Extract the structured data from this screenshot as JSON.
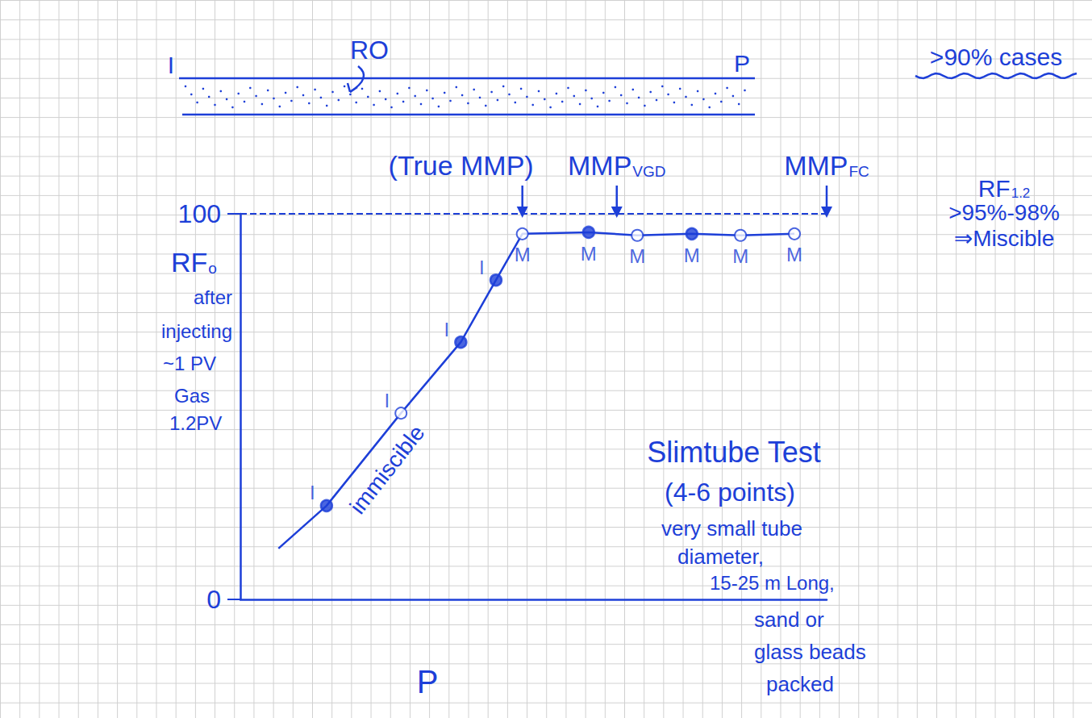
{
  "chart_data": {
    "type": "line",
    "color": "#1d3fd8",
    "xlabel": "P",
    "ylabel": [
      {
        "text": "RF",
        "sub": "o"
      },
      "after",
      "injecting",
      "~1 PV",
      "Gas",
      "1.2PV"
    ],
    "xlim": [
      0,
      100
    ],
    "ylim": [
      0,
      100
    ],
    "yticks": [
      0,
      100
    ],
    "tick_labels": "y",
    "grid": false,
    "reference_line": {
      "y": 100,
      "line_style": "dashed"
    },
    "series": [
      {
        "type": "line",
        "line_style": "solid",
        "x": [
          6.5,
          14.7,
          27.4,
          37.6,
          43.6,
          48.1,
          59.4,
          67.7,
          77.0,
          85.3,
          94.5
        ],
        "values": [
          13.2,
          24.3,
          48.3,
          66.7,
          82.8,
          94.8,
          95.2,
          94.4,
          94.8,
          94.4,
          94.8
        ]
      },
      {
        "type": "scatter",
        "marker": "circle",
        "x": [
          14.7,
          37.6,
          43.6,
          59.4,
          77.0
        ],
        "values": [
          24.3,
          66.7,
          82.8,
          95.2,
          94.8
        ],
        "point_labels": [
          "I",
          "I",
          "I",
          "M",
          "M"
        ]
      },
      {
        "type": "scatter",
        "marker": "emptyCircle",
        "x": [
          27.4,
          48.1,
          67.7,
          85.3,
          94.5
        ],
        "values": [
          48.3,
          94.8,
          94.4,
          94.4,
          94.8
        ],
        "point_labels": [
          "I",
          "M",
          "M",
          "M",
          "M"
        ]
      }
    ],
    "curve_label": "immiscible",
    "mmp_markers": [
      {
        "label": "(True MMP)",
        "x": 48.1
      },
      {
        "label": "MMP",
        "sub": "VGD",
        "x": 64.2
      },
      {
        "label": "MMP",
        "sub": "FC",
        "x": 100
      }
    ],
    "tube": {
      "inlet": "I",
      "outlet": "P",
      "label": "RO"
    },
    "note": ">90% cases",
    "miscible_note": [
      {
        "text": "RF",
        "sub": "1.2"
      },
      ">95%-98%",
      "⇒Miscible"
    ],
    "slimtube_note": [
      "Slimtube Test",
      "(4-6 points)",
      "very small tube",
      "diameter,",
      "15-25 m Long,",
      "sand or",
      "glass beads",
      "packed"
    ]
  }
}
